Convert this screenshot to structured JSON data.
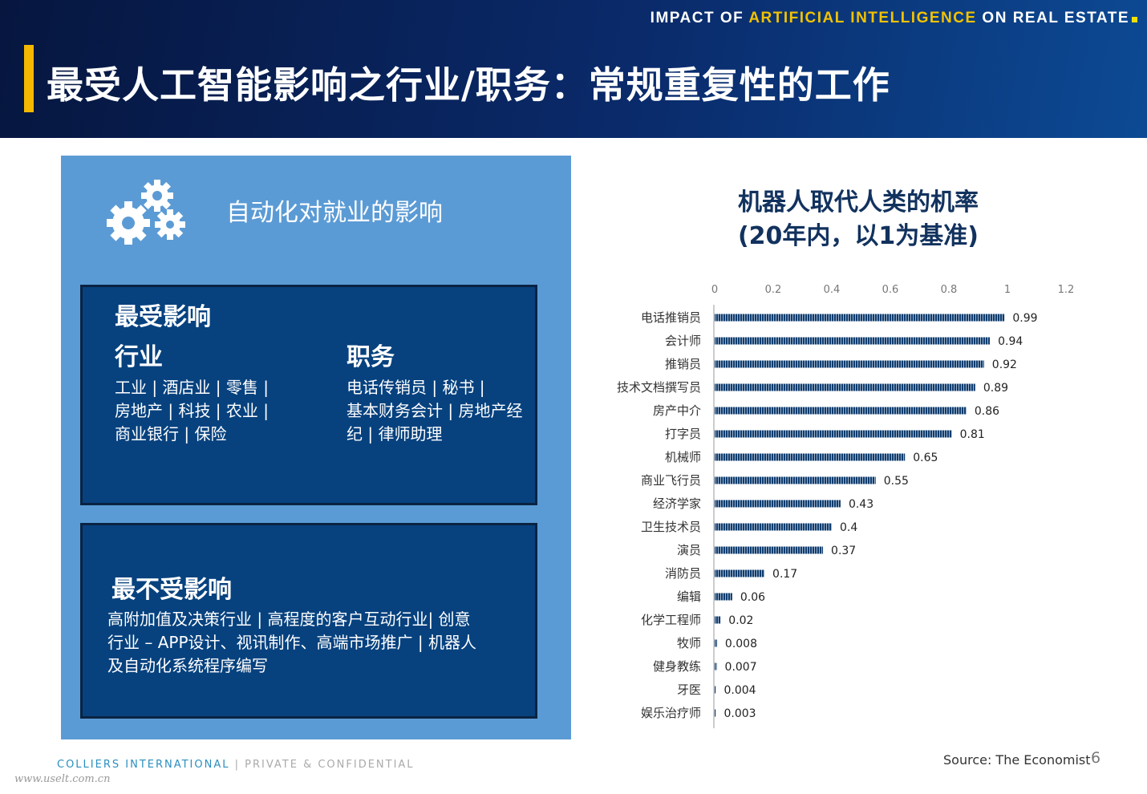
{
  "header": {
    "tagline_pre": "IMPACT OF ",
    "tagline_hl": "ARTIFICIAL INTELLIGENCE",
    "tagline_post": " ON REAL ESTATE",
    "title": "最受人工智能影响之行业/职务：常规重复性的工作"
  },
  "panel": {
    "title": "自动化对就业的影响",
    "icon": "gears-icon",
    "most": {
      "heading": "最受影响",
      "industry_heading": "行业",
      "industry_lines": [
        "工业 | 酒店业 | 零售 |",
        "房地产 | 科技 | 农业 |",
        "商业银行 | 保险"
      ],
      "job_heading": "职务",
      "job_lines": [
        "电话传销员 | 秘书 |",
        "基本财务会计 | 房地产经",
        "纪 | 律师助理"
      ]
    },
    "least": {
      "heading": "最不受影响",
      "lines": [
        "高附加值及决策行业 | 高程度的客户互动行业| 创意",
        "行业 – APP设计、视讯制作、高端市场推广 | 机器人",
        "及自动化系统程序编写"
      ]
    }
  },
  "chart_data": {
    "type": "bar",
    "orientation": "horizontal",
    "title_line1": "机器人取代人类的机率",
    "title_line2": "(20年内，以1为基准)",
    "categories": [
      "电话推销员",
      "会计师",
      "推销员",
      "技术文档撰写员",
      "房产中介",
      "打字员",
      "机械师",
      "商业飞行员",
      "经济学家",
      "卫生技术员",
      "演员",
      "消防员",
      "编辑",
      "化学工程师",
      "牧师",
      "健身教练",
      "牙医",
      "娱乐治疗师"
    ],
    "values": [
      0.99,
      0.94,
      0.92,
      0.89,
      0.86,
      0.81,
      0.65,
      0.55,
      0.43,
      0.4,
      0.37,
      0.17,
      0.06,
      0.02,
      0.008,
      0.007,
      0.004,
      0.003
    ],
    "value_labels": [
      "0.99",
      "0.94",
      "0.92",
      "0.89",
      "0.86",
      "0.81",
      "0.65",
      "0.55",
      "0.43",
      "0.4",
      "0.37",
      "0.17",
      "0.06",
      "0.02",
      "0.008",
      "0.007",
      "0.004",
      "0.003"
    ],
    "xlim": [
      0,
      1.2
    ],
    "ticks": [
      "0",
      "0.2",
      "0.4",
      "0.6",
      "0.8",
      "1",
      "1.2"
    ],
    "axis_position": "top",
    "grid": false,
    "bar_color": "#0f3c6e"
  },
  "footer": {
    "company": "COLLIERS INTERNATIONAL",
    "sep": " | ",
    "conf": "PRIVATE & CONFIDENTIAL",
    "source": "Source: The Economist",
    "page": "6",
    "watermark": "www.uselt.com.cn"
  }
}
